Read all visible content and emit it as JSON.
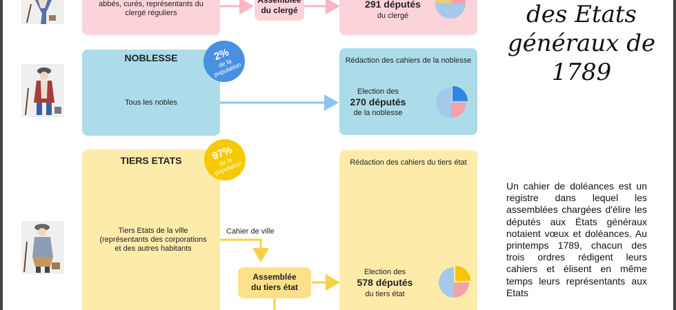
{
  "clergy": {
    "left_text": "abbés, curés, représentants du clergé réguliers",
    "assembly": "Assemblée du clergé",
    "deputies_count": "291 députés",
    "deputies_suffix": "du clergé"
  },
  "nobility": {
    "title": "NOBLESSE",
    "badge_pct": "2%",
    "badge_label": "de la population",
    "left_text": "Tous les nobles",
    "cahier_title": "Rédaction des cahiers de la noblesse",
    "election_prefix": "Election des",
    "deputies_count": "270 députés",
    "deputies_suffix": "de la noblesse"
  },
  "third_estate": {
    "title": "TIERS ETATS",
    "badge_pct": "97%",
    "badge_label": "de la population",
    "left_text": "Tiers Etats de la ville (représentants des corporations et des autres habitants",
    "arrow_label": "Cahier de ville",
    "assembly": "Assemblée du tiers état",
    "cahier_title": "Rédaction des cahiers du tiers état",
    "election_prefix": "Election des",
    "deputies_count": "578 députés",
    "deputies_suffix": "du tiers état"
  },
  "page_title": "des Etats généraux de 1789",
  "description": "Un cahier de doléances est un registre dans lequel les assemblées chargées d'élire les députés aux États généraux notaient vœux et doléances. Au printemps 1789, chacun des trois ordres rédigent leurs cahiers et élisent en même temps leurs représentants aux Etats",
  "colors": {
    "clergy_bg": "#fbd3d8",
    "nobility_bg": "#acdbe9",
    "third_bg": "#fdebaa",
    "third_assembly_bg": "#fde089",
    "nobility_badge": "#4a90e2",
    "third_badge": "#f7c900",
    "arrow_pink": "#f7b7c0",
    "arrow_blue": "#8cc4f2",
    "arrow_yellow": "#f7cf48"
  },
  "pie_charts": {
    "slice_colors": [
      "#f3a3a8",
      "#a6c8ea",
      "#e6cf7b"
    ],
    "clergy": {
      "highlight": "#ee5a5a",
      "values": [
        0.1,
        0.15,
        0.5,
        0.25
      ]
    },
    "nobility": {
      "highlight": "#2f86e6",
      "values": [
        0.25,
        0.25,
        0.5
      ]
    },
    "third": {
      "highlight": "#f6c400",
      "values": [
        0.25,
        0.25,
        0.5
      ]
    }
  }
}
